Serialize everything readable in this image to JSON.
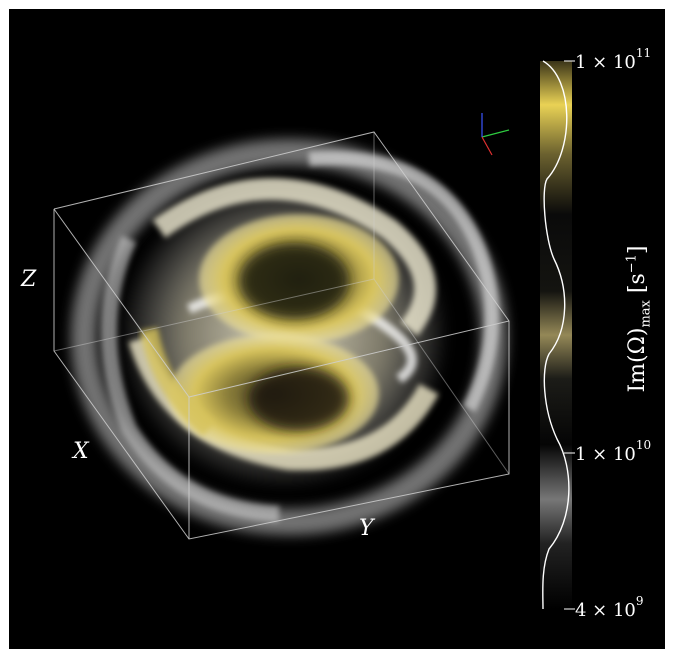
{
  "figure": {
    "axes": {
      "x": "X",
      "y": "Y",
      "z": "Z"
    },
    "colorbar": {
      "title_main": "Im(Ω)",
      "title_sub": "max",
      "title_units_open": "  [s",
      "title_units_exp": "−1",
      "title_units_close": "]",
      "ticks": [
        {
          "mantissa": "1 × 10",
          "exp": "11",
          "value": 100000000000
        },
        {
          "mantissa": "1 × 10",
          "exp": "10",
          "value": 10000000000
        },
        {
          "mantissa": "4 × 10",
          "exp": "9",
          "value": 4000000000
        }
      ],
      "scale": "log",
      "colors": {
        "high": "#e8d04a",
        "mid": "#8a7f55",
        "low": "#3a3a3a"
      }
    },
    "background": "#000000",
    "volume_colors": {
      "gold": "#d9c45a",
      "cream": "#f1ecd0",
      "white": "#e8e8e8"
    }
  }
}
